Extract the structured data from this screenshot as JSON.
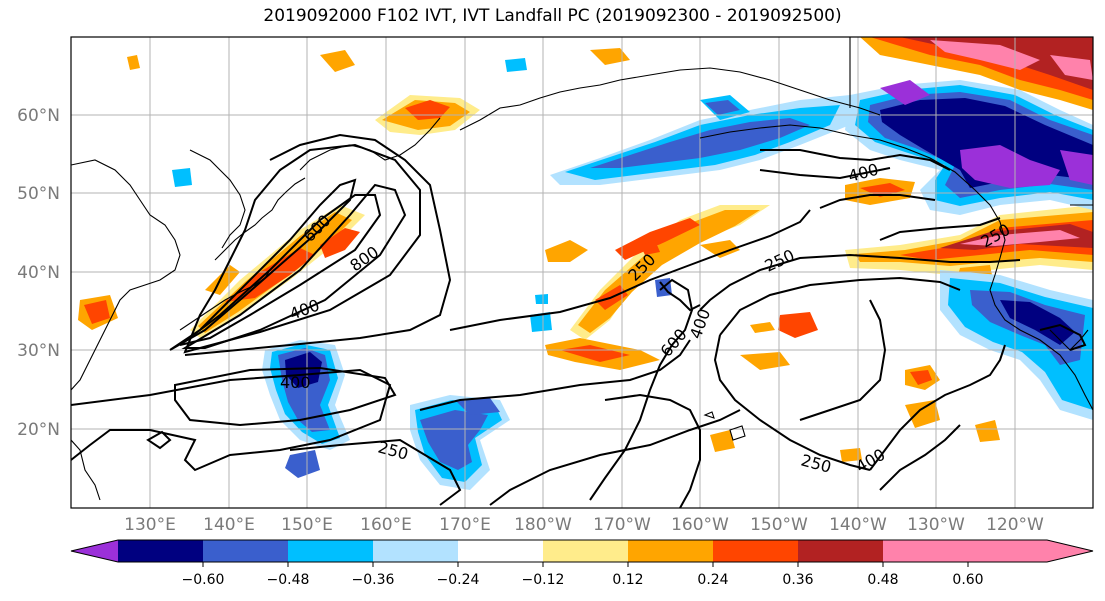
{
  "title": "2019092000 F102 IVT, IVT Landfall PC (2019092300 - 2019092500)",
  "latitude_labels": [
    "60°N",
    "50°N",
    "40°N",
    "30°N",
    "20°N"
  ],
  "longitude_labels": [
    "130°E",
    "140°E",
    "150°E",
    "160°E",
    "170°E",
    "180°W",
    "170°W",
    "160°W",
    "150°W",
    "140°W",
    "130°W",
    "120°W"
  ],
  "contour_labels": [
    "600",
    "800",
    "400",
    "400",
    "250",
    "600",
    "400",
    "250",
    "400",
    "250",
    "250",
    "250",
    "400"
  ],
  "colorbar": {
    "ticks": [
      "−0.60",
      "−0.48",
      "−0.36",
      "−0.24",
      "−0.12",
      "0.12",
      "0.24",
      "0.36",
      "0.48",
      "0.60"
    ],
    "colors": [
      "#9b30d9",
      "#000080",
      "#3a5fcd",
      "#00bfff",
      "#b2e2ff",
      "#ffffff",
      "#ffec8b",
      "#ffa500",
      "#ff4500",
      "#b22222",
      "#ff82ab"
    ]
  }
}
